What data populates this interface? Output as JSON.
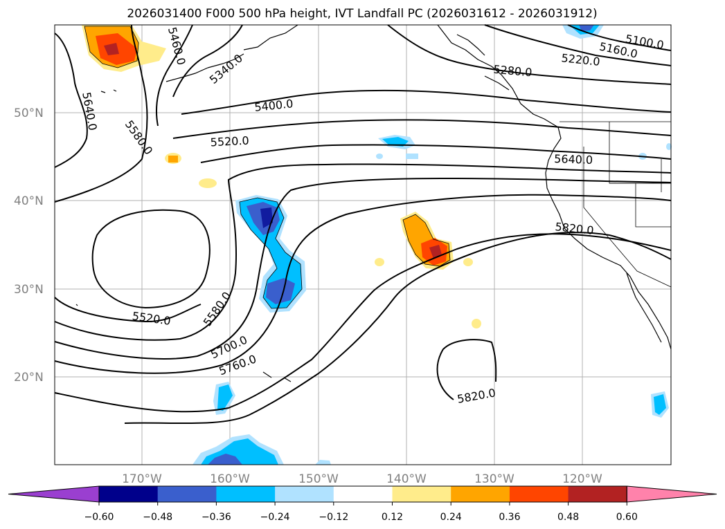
{
  "title": "2026031400 F000 500 hPa height, IVT Landfall PC (2026031612 - 2026031912)",
  "map": {
    "lat_ticks": [
      "50°N",
      "40°N",
      "30°N",
      "20°N"
    ],
    "lon_ticks": [
      "170°W",
      "160°W",
      "150°W",
      "140°W",
      "130°W",
      "120°W"
    ],
    "contour_labels": [
      "5100.0",
      "5160.0",
      "5220.0",
      "5280.0",
      "5340.0",
      "5400.0",
      "5460.0",
      "5520.0",
      "5520.0",
      "5580.0",
      "5580.0",
      "5640.0",
      "5640.0",
      "5700.0",
      "5760.0",
      "5820.0",
      "5820.0"
    ]
  },
  "colorbar": {
    "ticks": [
      "−0.60",
      "−0.48",
      "−0.36",
      "−0.24",
      "−0.12",
      "0.12",
      "0.24",
      "0.36",
      "0.48",
      "0.60"
    ],
    "colors": [
      "#9a3fd0",
      "#00008b",
      "#3a5fcd",
      "#00bfff",
      "#b0e2ff",
      "#ffffff",
      "#ffec8b",
      "#ffa500",
      "#ff4500",
      "#b22222",
      "#ff82ab"
    ]
  }
}
